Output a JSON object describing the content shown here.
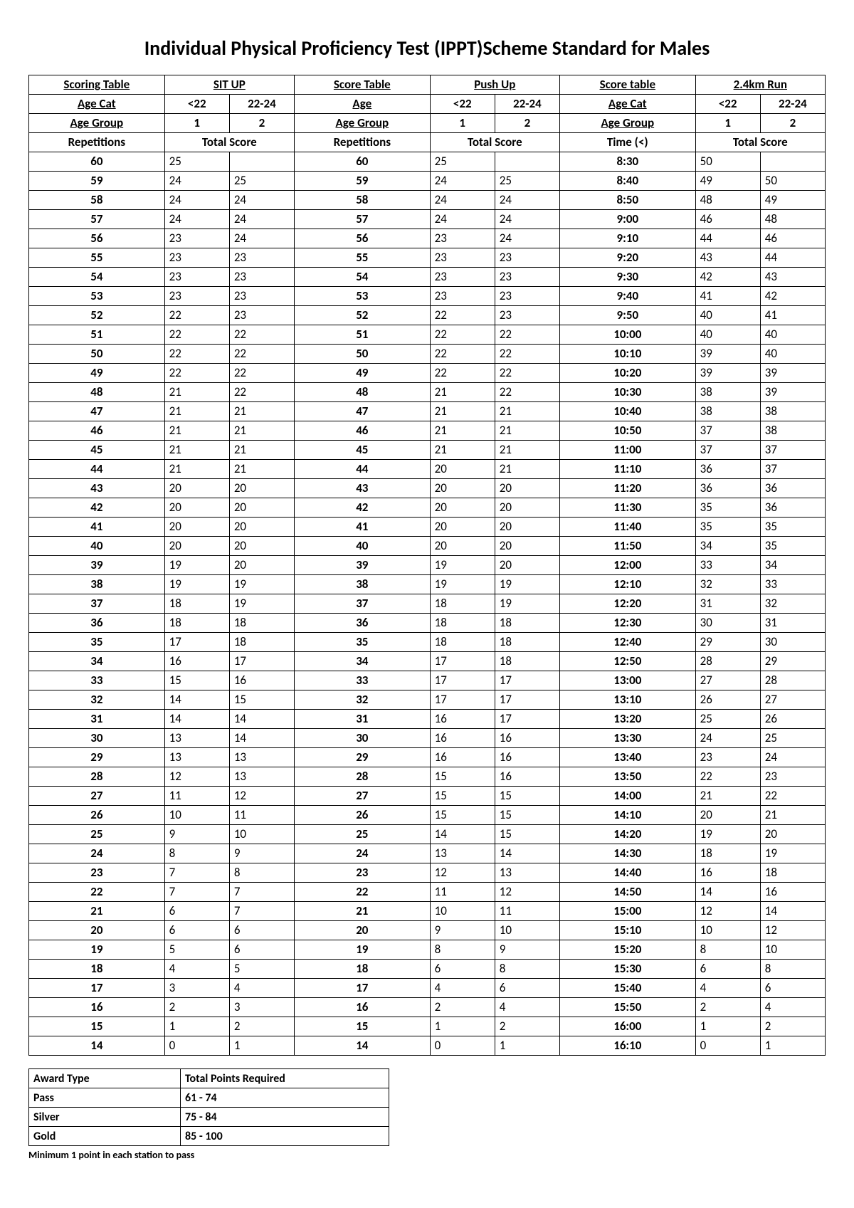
{
  "title": "Individual Physical Proficiency Test (IPPT)Scheme Standard for Males",
  "headers": {
    "row1": [
      "Scoring Table",
      "SIT UP",
      "Score Table",
      "Push Up",
      "Score table",
      "2.4km Run"
    ],
    "row2_labels": [
      "Age Cat",
      "Age",
      "Age Cat"
    ],
    "row2_groups": [
      "<22",
      "22-24"
    ],
    "row3_labels": [
      "Age Group",
      "Age Group",
      "Age Group"
    ],
    "row3_groups": [
      "1",
      "2"
    ],
    "row4_labels": [
      "Repetitions",
      "Repetitions",
      "Time (<)"
    ],
    "row4_score": "Total Score"
  },
  "columns": {
    "situp_reps": [
      "60",
      "59",
      "58",
      "57",
      "56",
      "55",
      "54",
      "53",
      "52",
      "51",
      "50",
      "49",
      "48",
      "47",
      "46",
      "45",
      "44",
      "43",
      "42",
      "41",
      "40",
      "39",
      "38",
      "37",
      "36",
      "35",
      "34",
      "33",
      "32",
      "31",
      "30",
      "29",
      "28",
      "27",
      "26",
      "25",
      "24",
      "23",
      "22",
      "21",
      "20",
      "19",
      "18",
      "17",
      "16",
      "15",
      "14"
    ],
    "situp_lt22": [
      "25",
      "24",
      "24",
      "24",
      "23",
      "23",
      "23",
      "23",
      "22",
      "22",
      "22",
      "22",
      "21",
      "21",
      "21",
      "21",
      "21",
      "20",
      "20",
      "20",
      "20",
      "19",
      "19",
      "18",
      "18",
      "17",
      "16",
      "15",
      "14",
      "14",
      "13",
      "13",
      "12",
      "11",
      "10",
      "9",
      "8",
      "7",
      "7",
      "6",
      "6",
      "5",
      "4",
      "3",
      "2",
      "1",
      "0"
    ],
    "situp_22_24": [
      "",
      "25",
      "24",
      "24",
      "24",
      "23",
      "23",
      "23",
      "23",
      "22",
      "22",
      "22",
      "22",
      "21",
      "21",
      "21",
      "21",
      "20",
      "20",
      "20",
      "20",
      "20",
      "19",
      "19",
      "18",
      "18",
      "17",
      "16",
      "15",
      "14",
      "14",
      "13",
      "13",
      "12",
      "11",
      "10",
      "9",
      "8",
      "7",
      "7",
      "6",
      "6",
      "5",
      "4",
      "3",
      "2",
      "1"
    ],
    "pushup_reps": [
      "60",
      "59",
      "58",
      "57",
      "56",
      "55",
      "54",
      "53",
      "52",
      "51",
      "50",
      "49",
      "48",
      "47",
      "46",
      "45",
      "44",
      "43",
      "42",
      "41",
      "40",
      "39",
      "38",
      "37",
      "36",
      "35",
      "34",
      "33",
      "32",
      "31",
      "30",
      "29",
      "28",
      "27",
      "26",
      "25",
      "24",
      "23",
      "22",
      "21",
      "20",
      "19",
      "18",
      "17",
      "16",
      "15",
      "14"
    ],
    "pushup_lt22": [
      "25",
      "24",
      "24",
      "24",
      "23",
      "23",
      "23",
      "23",
      "22",
      "22",
      "22",
      "22",
      "21",
      "21",
      "21",
      "21",
      "20",
      "20",
      "20",
      "20",
      "20",
      "19",
      "19",
      "18",
      "18",
      "18",
      "17",
      "17",
      "17",
      "16",
      "16",
      "16",
      "15",
      "15",
      "15",
      "14",
      "13",
      "12",
      "11",
      "10",
      "9",
      "8",
      "6",
      "4",
      "2",
      "1",
      "0"
    ],
    "pushup_22_24": [
      "",
      "25",
      "24",
      "24",
      "24",
      "23",
      "23",
      "23",
      "23",
      "22",
      "22",
      "22",
      "22",
      "21",
      "21",
      "21",
      "21",
      "20",
      "20",
      "20",
      "20",
      "20",
      "19",
      "19",
      "18",
      "18",
      "18",
      "17",
      "17",
      "17",
      "16",
      "16",
      "16",
      "15",
      "15",
      "15",
      "14",
      "13",
      "12",
      "11",
      "10",
      "9",
      "8",
      "6",
      "4",
      "2",
      "1"
    ],
    "run_time": [
      "8:30",
      "8:40",
      "8:50",
      "9:00",
      "9:10",
      "9:20",
      "9:30",
      "9:40",
      "9:50",
      "10:00",
      "10:10",
      "10:20",
      "10:30",
      "10:40",
      "10:50",
      "11:00",
      "11:10",
      "11:20",
      "11:30",
      "11:40",
      "11:50",
      "12:00",
      "12:10",
      "12:20",
      "12:30",
      "12:40",
      "12:50",
      "13:00",
      "13:10",
      "13:20",
      "13:30",
      "13:40",
      "13:50",
      "14:00",
      "14:10",
      "14:20",
      "14:30",
      "14:40",
      "14:50",
      "15:00",
      "15:10",
      "15:20",
      "15:30",
      "15:40",
      "15:50",
      "16:00",
      "16:10"
    ],
    "run_lt22": [
      "50",
      "49",
      "48",
      "46",
      "44",
      "43",
      "42",
      "41",
      "40",
      "40",
      "39",
      "39",
      "38",
      "38",
      "37",
      "37",
      "36",
      "36",
      "35",
      "35",
      "34",
      "33",
      "32",
      "31",
      "30",
      "29",
      "28",
      "27",
      "26",
      "25",
      "24",
      "23",
      "22",
      "21",
      "20",
      "19",
      "18",
      "16",
      "14",
      "12",
      "10",
      "8",
      "6",
      "4",
      "2",
      "1",
      "0"
    ],
    "run_22_24": [
      "",
      "50",
      "49",
      "48",
      "46",
      "44",
      "43",
      "42",
      "41",
      "40",
      "40",
      "39",
      "39",
      "38",
      "38",
      "37",
      "37",
      "36",
      "36",
      "35",
      "35",
      "34",
      "33",
      "32",
      "31",
      "30",
      "29",
      "28",
      "27",
      "26",
      "25",
      "24",
      "23",
      "22",
      "21",
      "20",
      "19",
      "18",
      "16",
      "14",
      "12",
      "10",
      "8",
      "6",
      "4",
      "2",
      "1"
    ]
  },
  "award": {
    "header": [
      "Award Type",
      "Total Points Required"
    ],
    "rows": [
      [
        "Pass",
        "61 - 74"
      ],
      [
        "Silver",
        "75 - 84"
      ],
      [
        "Gold",
        "85 - 100"
      ]
    ],
    "col_widths": [
      "200px",
      "280px"
    ]
  },
  "note": "Minimum 1 point in each station to pass",
  "styling": {
    "background_color": "#ffffff",
    "text_color": "#000000",
    "border_color": "#000000",
    "title_fontsize": 28,
    "table_fontsize": 17,
    "award_fontsize": 16,
    "note_fontsize": 14,
    "font_family": "Calibri, Arial, sans-serif"
  }
}
